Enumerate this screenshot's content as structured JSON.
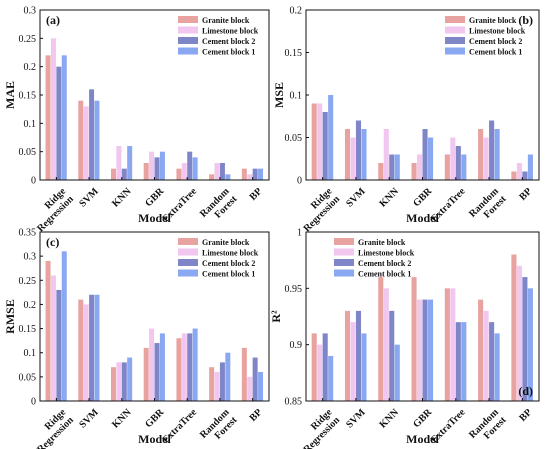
{
  "legend_labels": [
    "Granite block",
    "Limestone block",
    "Cement block 2",
    "Cement block 1"
  ],
  "series_colors": [
    "#e8a3a0",
    "#f1c6ef",
    "#7f86c8",
    "#89a8f1"
  ],
  "chart_data": [
    {
      "type": "bar",
      "panel_label": "(a)",
      "title": "",
      "xlabel": "Model",
      "ylabel": "MAE",
      "categories": [
        "Ridge\nRegression",
        "SVM",
        "KNN",
        "GBR",
        "ExtraTree",
        "Random\nForest",
        "BP"
      ],
      "ylim": [
        0,
        0.3
      ],
      "yticks": [
        0,
        0.05,
        0.1,
        0.15,
        0.2,
        0.25,
        0.3
      ],
      "ytick_labels": [
        "0",
        "0.05",
        "0.1",
        "0.15",
        "0.2",
        "0.25",
        "0.3"
      ],
      "legend_position": "top-right",
      "grid": false,
      "series": [
        {
          "name": "Granite block",
          "values": [
            0.22,
            0.14,
            0.02,
            0.03,
            0.02,
            0.01,
            0.02
          ]
        },
        {
          "name": "Limestone block",
          "values": [
            0.25,
            0.13,
            0.06,
            0.05,
            0.03,
            0.03,
            0.01
          ]
        },
        {
          "name": "Cement block 2",
          "values": [
            0.2,
            0.16,
            0.02,
            0.04,
            0.05,
            0.03,
            0.02
          ]
        },
        {
          "name": "Cement block 1",
          "values": [
            0.22,
            0.14,
            0.06,
            0.05,
            0.04,
            0.01,
            0.02
          ]
        }
      ]
    },
    {
      "type": "bar",
      "panel_label": "(b)",
      "title": "",
      "xlabel": "Model",
      "ylabel": "MSE",
      "categories": [
        "Ridge\nRegression",
        "SVM",
        "KNN",
        "GBR",
        "ExtraTree",
        "Random\nForest",
        "BP"
      ],
      "ylim": [
        0,
        0.2
      ],
      "yticks": [
        0,
        0.05,
        0.1,
        0.15,
        0.2
      ],
      "ytick_labels": [
        "0",
        "0.05",
        "0.1",
        "0.15",
        "0.2"
      ],
      "legend_position": "top-right",
      "grid": false,
      "series": [
        {
          "name": "Granite block",
          "values": [
            0.09,
            0.06,
            0.02,
            0.02,
            0.03,
            0.06,
            0.01
          ]
        },
        {
          "name": "Limestone block",
          "values": [
            0.09,
            0.05,
            0.06,
            0.03,
            0.05,
            0.05,
            0.02
          ]
        },
        {
          "name": "Cement block 2",
          "values": [
            0.08,
            0.07,
            0.03,
            0.06,
            0.04,
            0.07,
            0.01
          ]
        },
        {
          "name": "Cement block 1",
          "values": [
            0.1,
            0.06,
            0.03,
            0.05,
            0.03,
            0.06,
            0.03
          ]
        }
      ]
    },
    {
      "type": "bar",
      "panel_label": "(c)",
      "title": "",
      "xlabel": "Model",
      "ylabel": "RMSE",
      "categories": [
        "Ridge\nRegression",
        "SVM",
        "KNN",
        "GBR",
        "ExtraTree",
        "Random\nForest",
        "BP"
      ],
      "ylim": [
        0,
        0.35
      ],
      "yticks": [
        0,
        0.05,
        0.1,
        0.15,
        0.2,
        0.25,
        0.3,
        0.35
      ],
      "ytick_labels": [
        "0",
        "0.05",
        "0.1",
        "0.15",
        "0.2",
        "0.25",
        "0.3",
        "0.35"
      ],
      "legend_position": "top-right",
      "grid": false,
      "series": [
        {
          "name": "Granite block",
          "values": [
            0.29,
            0.21,
            0.07,
            0.11,
            0.13,
            0.07,
            0.11
          ]
        },
        {
          "name": "Limestone block",
          "values": [
            0.26,
            0.2,
            0.08,
            0.15,
            0.14,
            0.06,
            0.05
          ]
        },
        {
          "name": "Cement block 2",
          "values": [
            0.23,
            0.22,
            0.08,
            0.12,
            0.14,
            0.08,
            0.09
          ]
        },
        {
          "name": "Cement block 1",
          "values": [
            0.31,
            0.22,
            0.09,
            0.14,
            0.15,
            0.1,
            0.06
          ]
        }
      ]
    },
    {
      "type": "bar",
      "panel_label": "(d)",
      "title": "",
      "xlabel": "Model",
      "ylabel": "R²",
      "categories": [
        "Ridge\nRegression",
        "SVM",
        "KNN",
        "GBR",
        "ExtraTree",
        "Random\nForest",
        "BP"
      ],
      "ylim": [
        0.85,
        1
      ],
      "yticks": [
        0.85,
        0.9,
        0.95,
        1
      ],
      "ytick_labels": [
        "0.85",
        "0.9",
        "0.95",
        "1"
      ],
      "legend_position": "top-left",
      "grid": false,
      "series": [
        {
          "name": "Granite block",
          "values": [
            0.91,
            0.93,
            0.96,
            0.96,
            0.95,
            0.94,
            0.98
          ]
        },
        {
          "name": "Limestone block",
          "values": [
            0.9,
            0.92,
            0.95,
            0.94,
            0.95,
            0.93,
            0.97
          ]
        },
        {
          "name": "Cement block 2",
          "values": [
            0.91,
            0.93,
            0.93,
            0.94,
            0.92,
            0.92,
            0.96
          ]
        },
        {
          "name": "Cement block 1",
          "values": [
            0.89,
            0.91,
            0.9,
            0.94,
            0.92,
            0.91,
            0.95
          ]
        }
      ]
    }
  ]
}
